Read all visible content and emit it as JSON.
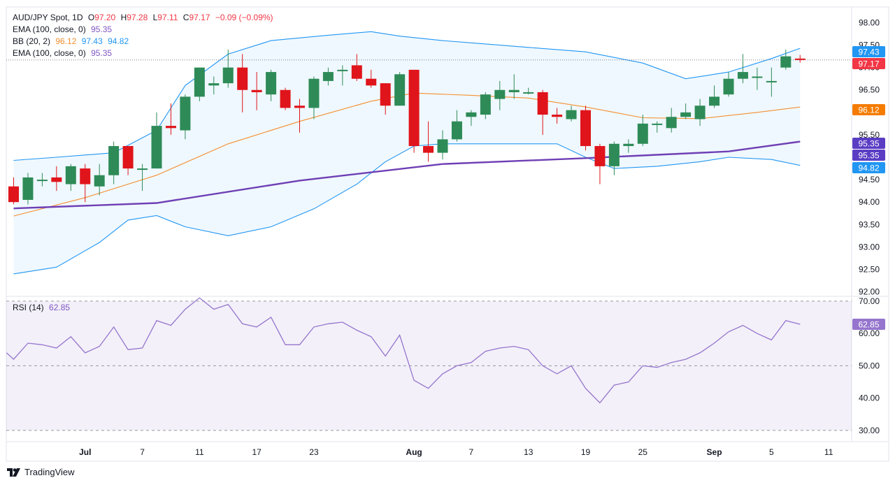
{
  "header": {
    "symbol": "AUD/JPY Spot, 1D",
    "o_label": "O",
    "o_value": "97.20",
    "h_label": "H",
    "h_value": "97.28",
    "l_label": "L",
    "l_value": "97.11",
    "c_label": "C",
    "c_value": "97.17",
    "change": "−0.09 (−0.09%)"
  },
  "legend": [
    {
      "label": "EMA (100, close, 0)",
      "values": [
        "95.35"
      ]
    },
    {
      "label": "BB (20, 2)",
      "values": [
        "96.12",
        "97.43",
        "94.82"
      ]
    },
    {
      "label": "EMA (100, close, 0)",
      "values": [
        "95.35"
      ]
    }
  ],
  "rsi_legend": {
    "label": "RSI (14)",
    "value": "62.85"
  },
  "brand": "TradingView",
  "colors": {
    "up": "#2e8b57",
    "down": "#e0141b",
    "ema": "#6f3fb5",
    "bb_basis": "#f58f2f",
    "bb_band": "#2196f3",
    "rsi": "#9575cd",
    "badge_last": "#f23645",
    "badge_ema": "#5b3dc4"
  },
  "chart_data": {
    "type": "candlestick",
    "price_axis": {
      "ylim": [
        91.9,
        98.35
      ],
      "ticks": [
        "98.00",
        "97.50",
        "97.00",
        "96.50",
        "96.00",
        "95.50",
        "95.00",
        "94.50",
        "94.00",
        "93.50",
        "93.00",
        "92.50",
        "92.00"
      ]
    },
    "x_ticks": [
      {
        "label": "Jul",
        "i": 5
      },
      {
        "label": "7",
        "i": 9
      },
      {
        "label": "11",
        "i": 13
      },
      {
        "label": "17",
        "i": 17
      },
      {
        "label": "23",
        "i": 21
      },
      {
        "label": "Aug",
        "i": 28
      },
      {
        "label": "7",
        "i": 32
      },
      {
        "label": "13",
        "i": 36
      },
      {
        "label": "19",
        "i": 40
      },
      {
        "label": "25",
        "i": 44
      },
      {
        "label": "Sep",
        "i": 49
      },
      {
        "label": "5",
        "i": 53
      },
      {
        "label": "11",
        "i": 57
      }
    ],
    "candles": [
      [
        94.35,
        94.0,
        94.55,
        93.95
      ],
      [
        94.05,
        94.55,
        94.65,
        93.95
      ],
      [
        94.5,
        94.5,
        94.65,
        94.35
      ],
      [
        94.55,
        94.45,
        94.8,
        94.25
      ],
      [
        94.4,
        94.8,
        94.85,
        94.25
      ],
      [
        94.75,
        94.4,
        94.85,
        94.0
      ],
      [
        94.35,
        94.6,
        94.85,
        94.15
      ],
      [
        94.6,
        95.25,
        95.35,
        94.4
      ],
      [
        95.25,
        94.75,
        95.25,
        94.6
      ],
      [
        94.75,
        94.75,
        94.85,
        94.25
      ],
      [
        94.75,
        95.7,
        96.0,
        94.75
      ],
      [
        95.7,
        95.65,
        96.2,
        95.5
      ],
      [
        95.6,
        96.35,
        96.4,
        95.4
      ],
      [
        96.35,
        97.0,
        97.0,
        96.25
      ],
      [
        96.6,
        96.65,
        96.8,
        96.4
      ],
      [
        96.65,
        97.0,
        97.4,
        96.55
      ],
      [
        97.0,
        96.5,
        97.3,
        96.0
      ],
      [
        96.5,
        96.45,
        96.9,
        96.05
      ],
      [
        96.4,
        96.9,
        96.95,
        96.25
      ],
      [
        96.5,
        96.1,
        96.55,
        96.05
      ],
      [
        96.15,
        96.1,
        96.3,
        95.55
      ],
      [
        96.1,
        96.75,
        96.8,
        95.85
      ],
      [
        96.7,
        96.9,
        97.0,
        96.6
      ],
      [
        96.95,
        96.95,
        97.05,
        96.6
      ],
      [
        97.05,
        96.75,
        97.3,
        96.7
      ],
      [
        96.75,
        96.6,
        96.95,
        96.55
      ],
      [
        96.65,
        96.15,
        96.65,
        95.95
      ],
      [
        96.15,
        96.85,
        96.9,
        96.15
      ],
      [
        96.95,
        95.25,
        96.95,
        95.1
      ],
      [
        95.25,
        95.1,
        95.8,
        94.9
      ],
      [
        95.1,
        95.4,
        95.6,
        94.95
      ],
      [
        95.4,
        95.8,
        96.05,
        95.35
      ],
      [
        95.9,
        96.0,
        96.05,
        95.7
      ],
      [
        95.95,
        96.4,
        96.45,
        95.85
      ],
      [
        96.3,
        96.5,
        96.7,
        96.05
      ],
      [
        96.45,
        96.5,
        96.85,
        96.3
      ],
      [
        96.45,
        96.45,
        96.55,
        96.4
      ],
      [
        96.45,
        95.95,
        96.5,
        95.5
      ],
      [
        95.95,
        95.9,
        96.1,
        95.75
      ],
      [
        95.85,
        96.05,
        96.15,
        95.8
      ],
      [
        96.05,
        95.25,
        96.15,
        95.15
      ],
      [
        95.25,
        94.8,
        95.3,
        94.4
      ],
      [
        94.8,
        95.3,
        95.35,
        94.6
      ],
      [
        95.25,
        95.3,
        95.4,
        95.1
      ],
      [
        95.3,
        95.75,
        95.95,
        95.25
      ],
      [
        95.75,
        95.75,
        95.8,
        95.55
      ],
      [
        95.65,
        95.9,
        96.1,
        95.55
      ],
      [
        95.9,
        96.0,
        96.2,
        95.85
      ],
      [
        95.85,
        96.15,
        96.3,
        95.7
      ],
      [
        96.15,
        96.35,
        96.6,
        96.1
      ],
      [
        96.4,
        96.75,
        96.9,
        96.35
      ],
      [
        96.75,
        96.9,
        97.3,
        96.65
      ],
      [
        96.8,
        96.8,
        97.0,
        96.5
      ],
      [
        96.7,
        96.7,
        97.0,
        96.35
      ],
      [
        97.0,
        97.25,
        97.4,
        96.95
      ],
      [
        97.2,
        97.17,
        97.28,
        97.11
      ]
    ],
    "ema100": [
      [
        0,
        93.86
      ],
      [
        10,
        93.98
      ],
      [
        20,
        94.48
      ],
      [
        30,
        94.85
      ],
      [
        40,
        94.98
      ],
      [
        50,
        95.13
      ],
      [
        55,
        95.35
      ]
    ],
    "bb_basis": [
      [
        0,
        93.69
      ],
      [
        5,
        94.1
      ],
      [
        10,
        94.6
      ],
      [
        15,
        95.3
      ],
      [
        20,
        95.8
      ],
      [
        25,
        96.25
      ],
      [
        28,
        96.43
      ],
      [
        32,
        96.38
      ],
      [
        36,
        96.32
      ],
      [
        40,
        96.12
      ],
      [
        44,
        95.88
      ],
      [
        48,
        95.86
      ],
      [
        52,
        96.0
      ],
      [
        55,
        96.12
      ]
    ],
    "bb_upper": [
      [
        0,
        94.93
      ],
      [
        3,
        95.0
      ],
      [
        7,
        95.1
      ],
      [
        10,
        95.6
      ],
      [
        12,
        96.6
      ],
      [
        15,
        97.3
      ],
      [
        18,
        97.6
      ],
      [
        22,
        97.72
      ],
      [
        25,
        97.8
      ],
      [
        27,
        97.7
      ],
      [
        30,
        97.6
      ],
      [
        32,
        97.55
      ],
      [
        36,
        97.45
      ],
      [
        40,
        97.35
      ],
      [
        44,
        97.1
      ],
      [
        47,
        96.75
      ],
      [
        50,
        96.9
      ],
      [
        53,
        97.2
      ],
      [
        55,
        97.43
      ]
    ],
    "bb_lower": [
      [
        0,
        92.4
      ],
      [
        3,
        92.55
      ],
      [
        6,
        93.1
      ],
      [
        8,
        93.6
      ],
      [
        10,
        93.7
      ],
      [
        12,
        93.45
      ],
      [
        15,
        93.25
      ],
      [
        18,
        93.45
      ],
      [
        21,
        93.85
      ],
      [
        24,
        94.4
      ],
      [
        26,
        94.9
      ],
      [
        28,
        95.25
      ],
      [
        30,
        95.3
      ],
      [
        34,
        95.3
      ],
      [
        38,
        95.3
      ],
      [
        40,
        95.0
      ],
      [
        42,
        94.75
      ],
      [
        45,
        94.8
      ],
      [
        48,
        94.9
      ],
      [
        50,
        95.0
      ],
      [
        53,
        94.95
      ],
      [
        55,
        94.82
      ]
    ],
    "current_price": 97.17,
    "price_badges": [
      "97.43",
      "97.17",
      "96.12",
      "95.35",
      "95.35",
      "94.82"
    ],
    "rsi": {
      "ylim": [
        26.5,
        71.5
      ],
      "ticks": [
        "70.00",
        "60.00",
        "50.00",
        "40.00",
        "30.00"
      ],
      "levels": [
        70,
        50,
        30
      ],
      "values": [
        [
          -0.5,
          54
        ],
        [
          0,
          52
        ],
        [
          1,
          57
        ],
        [
          2,
          56.5
        ],
        [
          3,
          55.5
        ],
        [
          4,
          59
        ],
        [
          5,
          54
        ],
        [
          6,
          56
        ],
        [
          7,
          62
        ],
        [
          8,
          55
        ],
        [
          9,
          55.5
        ],
        [
          10,
          64
        ],
        [
          11,
          62.5
        ],
        [
          12,
          67.5
        ],
        [
          13,
          71
        ],
        [
          14,
          67.5
        ],
        [
          15,
          69
        ],
        [
          16,
          63
        ],
        [
          17,
          62
        ],
        [
          18,
          65
        ],
        [
          19,
          56.5
        ],
        [
          20,
          56.5
        ],
        [
          21,
          62
        ],
        [
          22,
          63
        ],
        [
          23,
          63.5
        ],
        [
          24,
          61
        ],
        [
          25,
          59
        ],
        [
          26,
          53
        ],
        [
          27,
          59.5
        ],
        [
          28,
          45.5
        ],
        [
          29,
          43
        ],
        [
          30,
          47.5
        ],
        [
          31,
          50
        ],
        [
          32,
          51
        ],
        [
          33,
          54.5
        ],
        [
          34,
          55.5
        ],
        [
          35,
          56
        ],
        [
          36,
          55
        ],
        [
          37,
          50
        ],
        [
          38,
          47.5
        ],
        [
          39,
          50
        ],
        [
          40,
          43
        ],
        [
          41,
          38.5
        ],
        [
          42,
          44
        ],
        [
          43,
          45
        ],
        [
          44,
          50
        ],
        [
          45,
          49.5
        ],
        [
          46,
          51
        ],
        [
          47,
          52
        ],
        [
          48,
          54
        ],
        [
          49,
          57
        ],
        [
          50,
          60.5
        ],
        [
          51,
          62.5
        ],
        [
          52,
          60
        ],
        [
          53,
          58
        ],
        [
          54,
          64
        ],
        [
          55,
          62.85
        ]
      ]
    }
  }
}
